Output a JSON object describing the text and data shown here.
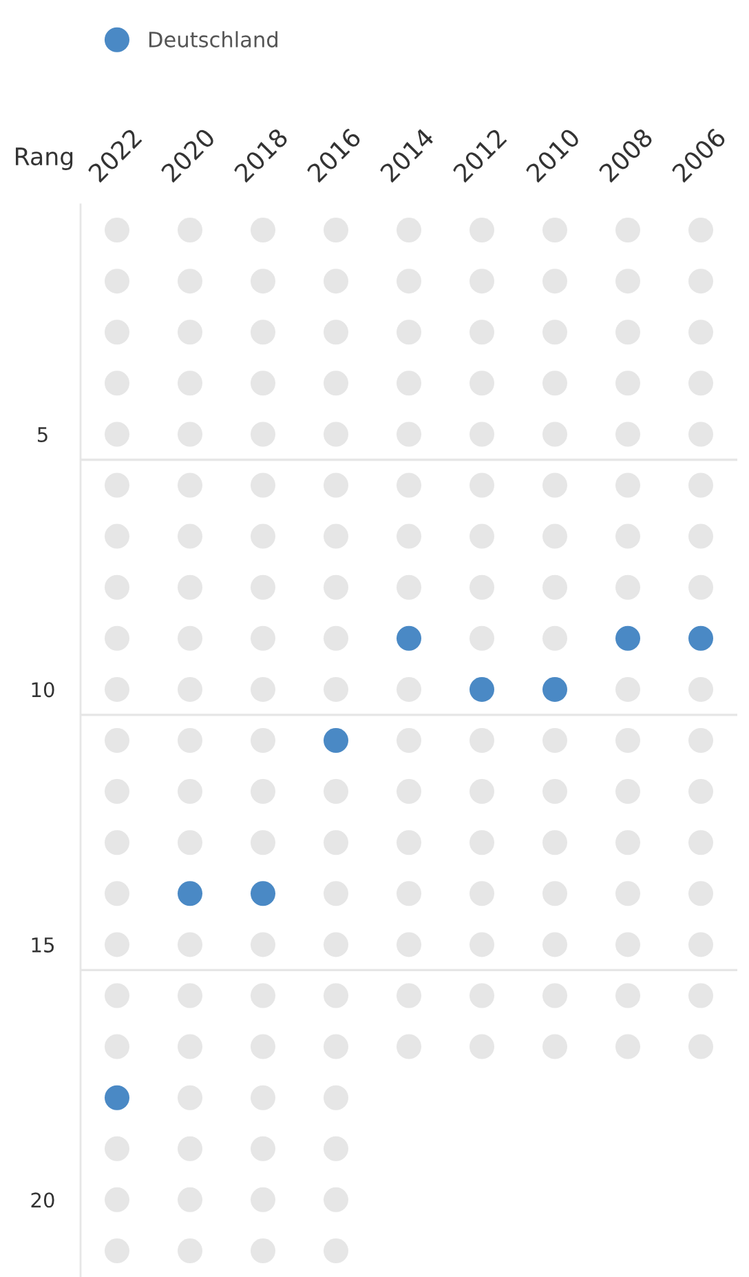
{
  "chart_data": {
    "type": "scatter",
    "ylabel": "Rang",
    "xlim": [
      2023,
      2005
    ],
    "xticks": [
      2022,
      2020,
      2018,
      2016,
      2014,
      2012,
      2010,
      2008,
      2006
    ],
    "ylim": [
      21.5,
      0.5
    ],
    "yticks": [
      5,
      10,
      15,
      20
    ],
    "x": [
      2022,
      2020,
      2018,
      2016,
      2014,
      2012,
      2010,
      2008,
      2006
    ],
    "legend": "top left",
    "marker": "circle",
    "ref_lines": [
      {
        "axis": "y",
        "value": 5.5,
        "color": "#e6e6e6"
      },
      {
        "axis": "y",
        "value": 10.5,
        "color": "#e6e6e6"
      },
      {
        "axis": "y",
        "value": 15.5,
        "color": "#e6e6e6"
      }
    ],
    "series": [
      {
        "color": "#e6e6e6",
        "x": [
          2022,
          2022,
          2022,
          2022,
          2022,
          2022,
          2022,
          2022,
          2022,
          2022,
          2022,
          2022,
          2022,
          2022,
          2022,
          2022,
          2022,
          2022,
          2022,
          2022,
          2020,
          2020,
          2020,
          2020,
          2020,
          2020,
          2020,
          2020,
          2020,
          2020,
          2020,
          2020,
          2020,
          2020,
          2020,
          2020,
          2020,
          2020,
          2020,
          2020,
          2018,
          2018,
          2018,
          2018,
          2018,
          2018,
          2018,
          2018,
          2018,
          2018,
          2018,
          2018,
          2018,
          2018,
          2018,
          2018,
          2018,
          2018,
          2018,
          2018,
          2016,
          2016,
          2016,
          2016,
          2016,
          2016,
          2016,
          2016,
          2016,
          2016,
          2016,
          2016,
          2016,
          2016,
          2016,
          2016,
          2016,
          2016,
          2016,
          2016,
          2014,
          2014,
          2014,
          2014,
          2014,
          2014,
          2014,
          2014,
          2014,
          2014,
          2014,
          2014,
          2014,
          2014,
          2014,
          2014,
          2012,
          2012,
          2012,
          2012,
          2012,
          2012,
          2012,
          2012,
          2012,
          2012,
          2012,
          2012,
          2012,
          2012,
          2012,
          2012,
          2010,
          2010,
          2010,
          2010,
          2010,
          2010,
          2010,
          2010,
          2010,
          2010,
          2010,
          2010,
          2010,
          2010,
          2010,
          2010,
          2008,
          2008,
          2008,
          2008,
          2008,
          2008,
          2008,
          2008,
          2008,
          2008,
          2008,
          2008,
          2008,
          2008,
          2008,
          2008,
          2006,
          2006,
          2006,
          2006,
          2006,
          2006,
          2006,
          2006,
          2006,
          2006,
          2006,
          2006,
          2006,
          2006,
          2006,
          2006
        ],
        "values": [
          1,
          2,
          3,
          4,
          5,
          6,
          7,
          8,
          9,
          10,
          11,
          12,
          13,
          14,
          15,
          16,
          17,
          19,
          20,
          21,
          1,
          2,
          3,
          4,
          5,
          6,
          7,
          8,
          9,
          10,
          11,
          12,
          13,
          15,
          16,
          17,
          18,
          19,
          20,
          21,
          1,
          2,
          3,
          4,
          5,
          6,
          7,
          8,
          9,
          10,
          11,
          12,
          13,
          15,
          16,
          17,
          18,
          19,
          20,
          21,
          1,
          2,
          3,
          4,
          5,
          6,
          7,
          8,
          9,
          10,
          12,
          13,
          14,
          15,
          16,
          17,
          18,
          19,
          20,
          21,
          1,
          2,
          3,
          4,
          5,
          6,
          7,
          8,
          10,
          11,
          12,
          13,
          14,
          15,
          16,
          17,
          1,
          2,
          3,
          4,
          5,
          6,
          7,
          8,
          9,
          11,
          12,
          13,
          14,
          15,
          16,
          17,
          1,
          2,
          3,
          4,
          5,
          6,
          7,
          8,
          9,
          11,
          12,
          13,
          14,
          15,
          16,
          17,
          1,
          2,
          3,
          4,
          5,
          6,
          7,
          8,
          10,
          11,
          12,
          13,
          14,
          15,
          16,
          17,
          1,
          2,
          3,
          4,
          5,
          6,
          7,
          8,
          10,
          11,
          12,
          13,
          14,
          15,
          16,
          17
        ]
      },
      {
        "name": "Deutschland",
        "color": "#4a89c5",
        "values": [
          18,
          14,
          14,
          11,
          9,
          10,
          10,
          9,
          9
        ]
      }
    ]
  }
}
